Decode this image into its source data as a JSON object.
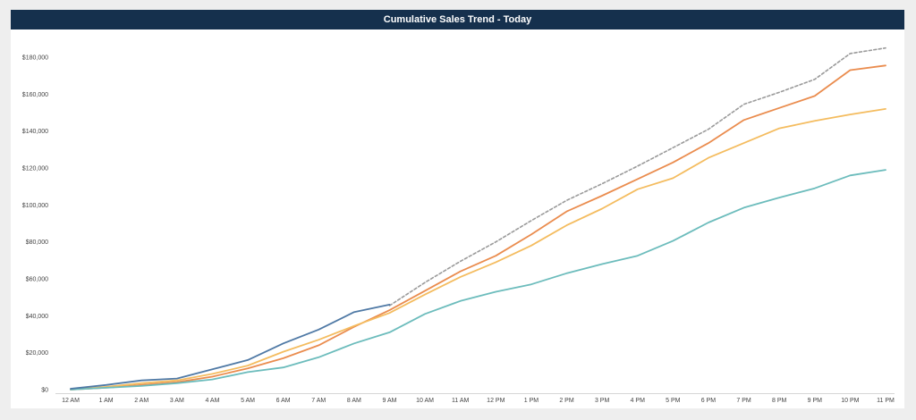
{
  "chart_data": {
    "type": "line",
    "title": "Cumulative Sales Trend - Today",
    "xlabel": "",
    "ylabel": "",
    "categories": [
      "12 AM",
      "1 AM",
      "2 AM",
      "3 AM",
      "4 AM",
      "5 AM",
      "6 AM",
      "7 AM",
      "8 AM",
      "9 AM",
      "10 AM",
      "11 AM",
      "12 PM",
      "1 PM",
      "2 PM",
      "3 PM",
      "4 PM",
      "5 PM",
      "6 PM",
      "7 PM",
      "8 PM",
      "9 PM",
      "10 PM",
      "11 PM"
    ],
    "y_ticks": [
      0,
      20000,
      40000,
      60000,
      80000,
      100000,
      120000,
      140000,
      160000,
      180000
    ],
    "y_tick_labels": [
      "$0",
      "$20,000",
      "$40,000",
      "$60,000",
      "$80,000",
      "$100,000",
      "$120,000",
      "$140,000",
      "$160,000",
      "$180,000"
    ],
    "ylim": [
      0,
      190000
    ],
    "grid": false,
    "legend": "none",
    "series": [
      {
        "color": "#9a9a9a",
        "dashed": true,
        "values": [
          null,
          null,
          null,
          null,
          null,
          null,
          null,
          null,
          null,
          45500,
          58000,
          69500,
          80000,
          91500,
          102500,
          111500,
          121000,
          131000,
          141000,
          154500,
          161000,
          168000,
          182000,
          185000
        ]
      },
      {
        "color": "#ea8c4e",
        "dashed": false,
        "values": [
          0,
          1000,
          2500,
          4000,
          7000,
          11500,
          17000,
          24000,
          34000,
          43000,
          53500,
          64000,
          72500,
          84000,
          96500,
          105000,
          114000,
          123000,
          133500,
          146000,
          152500,
          159000,
          173000,
          175500
        ]
      },
      {
        "color": "#f4bc5f",
        "dashed": false,
        "values": [
          0,
          1500,
          3500,
          5000,
          8500,
          13000,
          20500,
          27000,
          34500,
          41500,
          51500,
          61000,
          69000,
          78000,
          89000,
          98000,
          108500,
          114500,
          125500,
          133500,
          141500,
          145500,
          149000,
          152000
        ]
      },
      {
        "color": "#6cbcbc",
        "dashed": false,
        "values": [
          0,
          1000,
          2000,
          3500,
          5500,
          9500,
          12000,
          17500,
          25000,
          31000,
          41000,
          48000,
          53000,
          57000,
          63000,
          68000,
          72500,
          80500,
          90500,
          98500,
          104000,
          109000,
          116000,
          119000
        ]
      },
      {
        "color": "#4f79a5",
        "dashed": false,
        "values": [
          500,
          2500,
          5000,
          6000,
          11000,
          16000,
          25000,
          32500,
          42000,
          46000,
          null,
          null,
          null,
          null,
          null,
          null,
          null,
          null,
          null,
          null,
          null,
          null,
          null,
          null
        ]
      }
    ]
  }
}
